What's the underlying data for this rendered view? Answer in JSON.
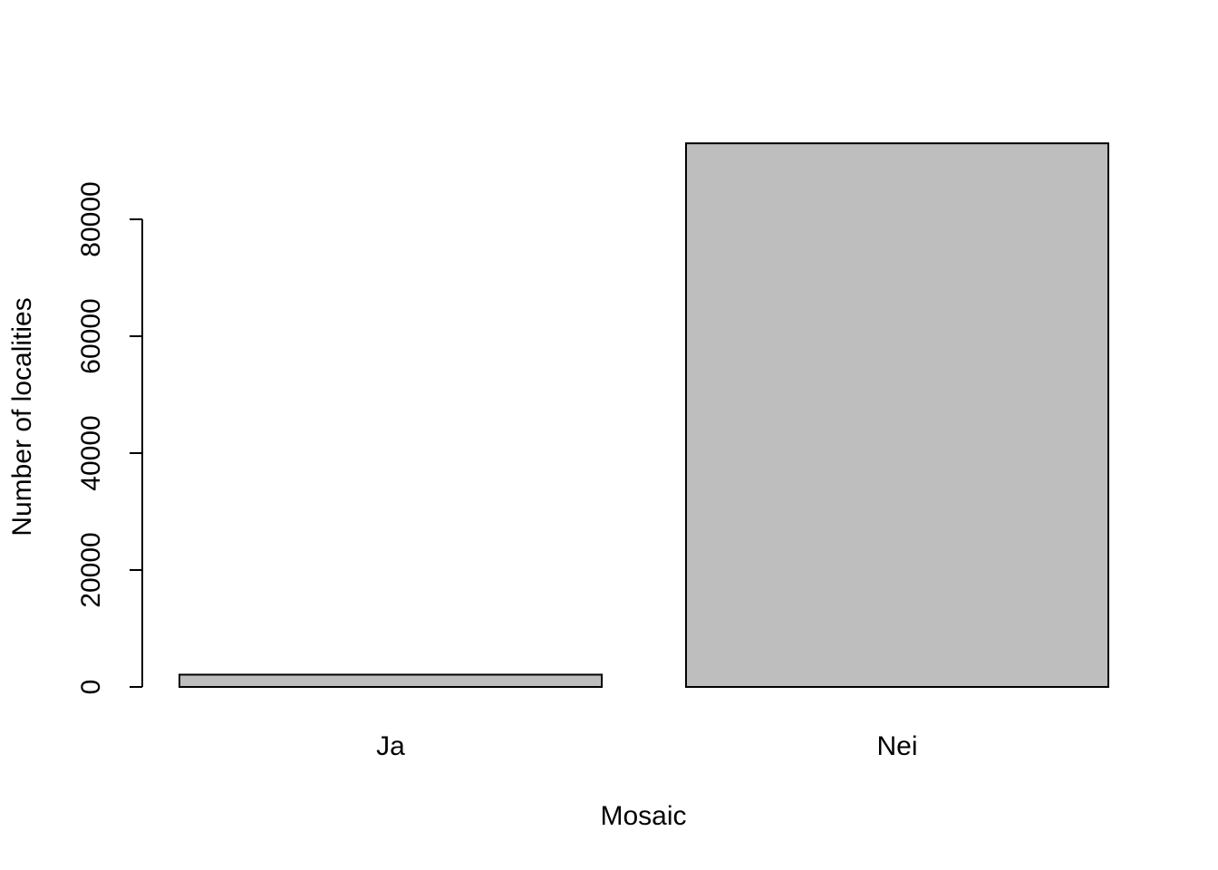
{
  "chart_data": {
    "type": "bar",
    "title": "",
    "xlabel": "Mosaic",
    "ylabel": "Number of localities",
    "categories": [
      "Ja",
      "Nei"
    ],
    "values": [
      2100,
      93000
    ],
    "ylim": [
      0,
      93000
    ],
    "yticks": [
      0,
      20000,
      40000,
      60000,
      80000
    ],
    "ytick_labels": [
      "0",
      "20000",
      "40000",
      "60000",
      "80000"
    ],
    "grid": false,
    "legend": "none",
    "bar_fill": "#bebebe",
    "bar_stroke": "#000000"
  }
}
